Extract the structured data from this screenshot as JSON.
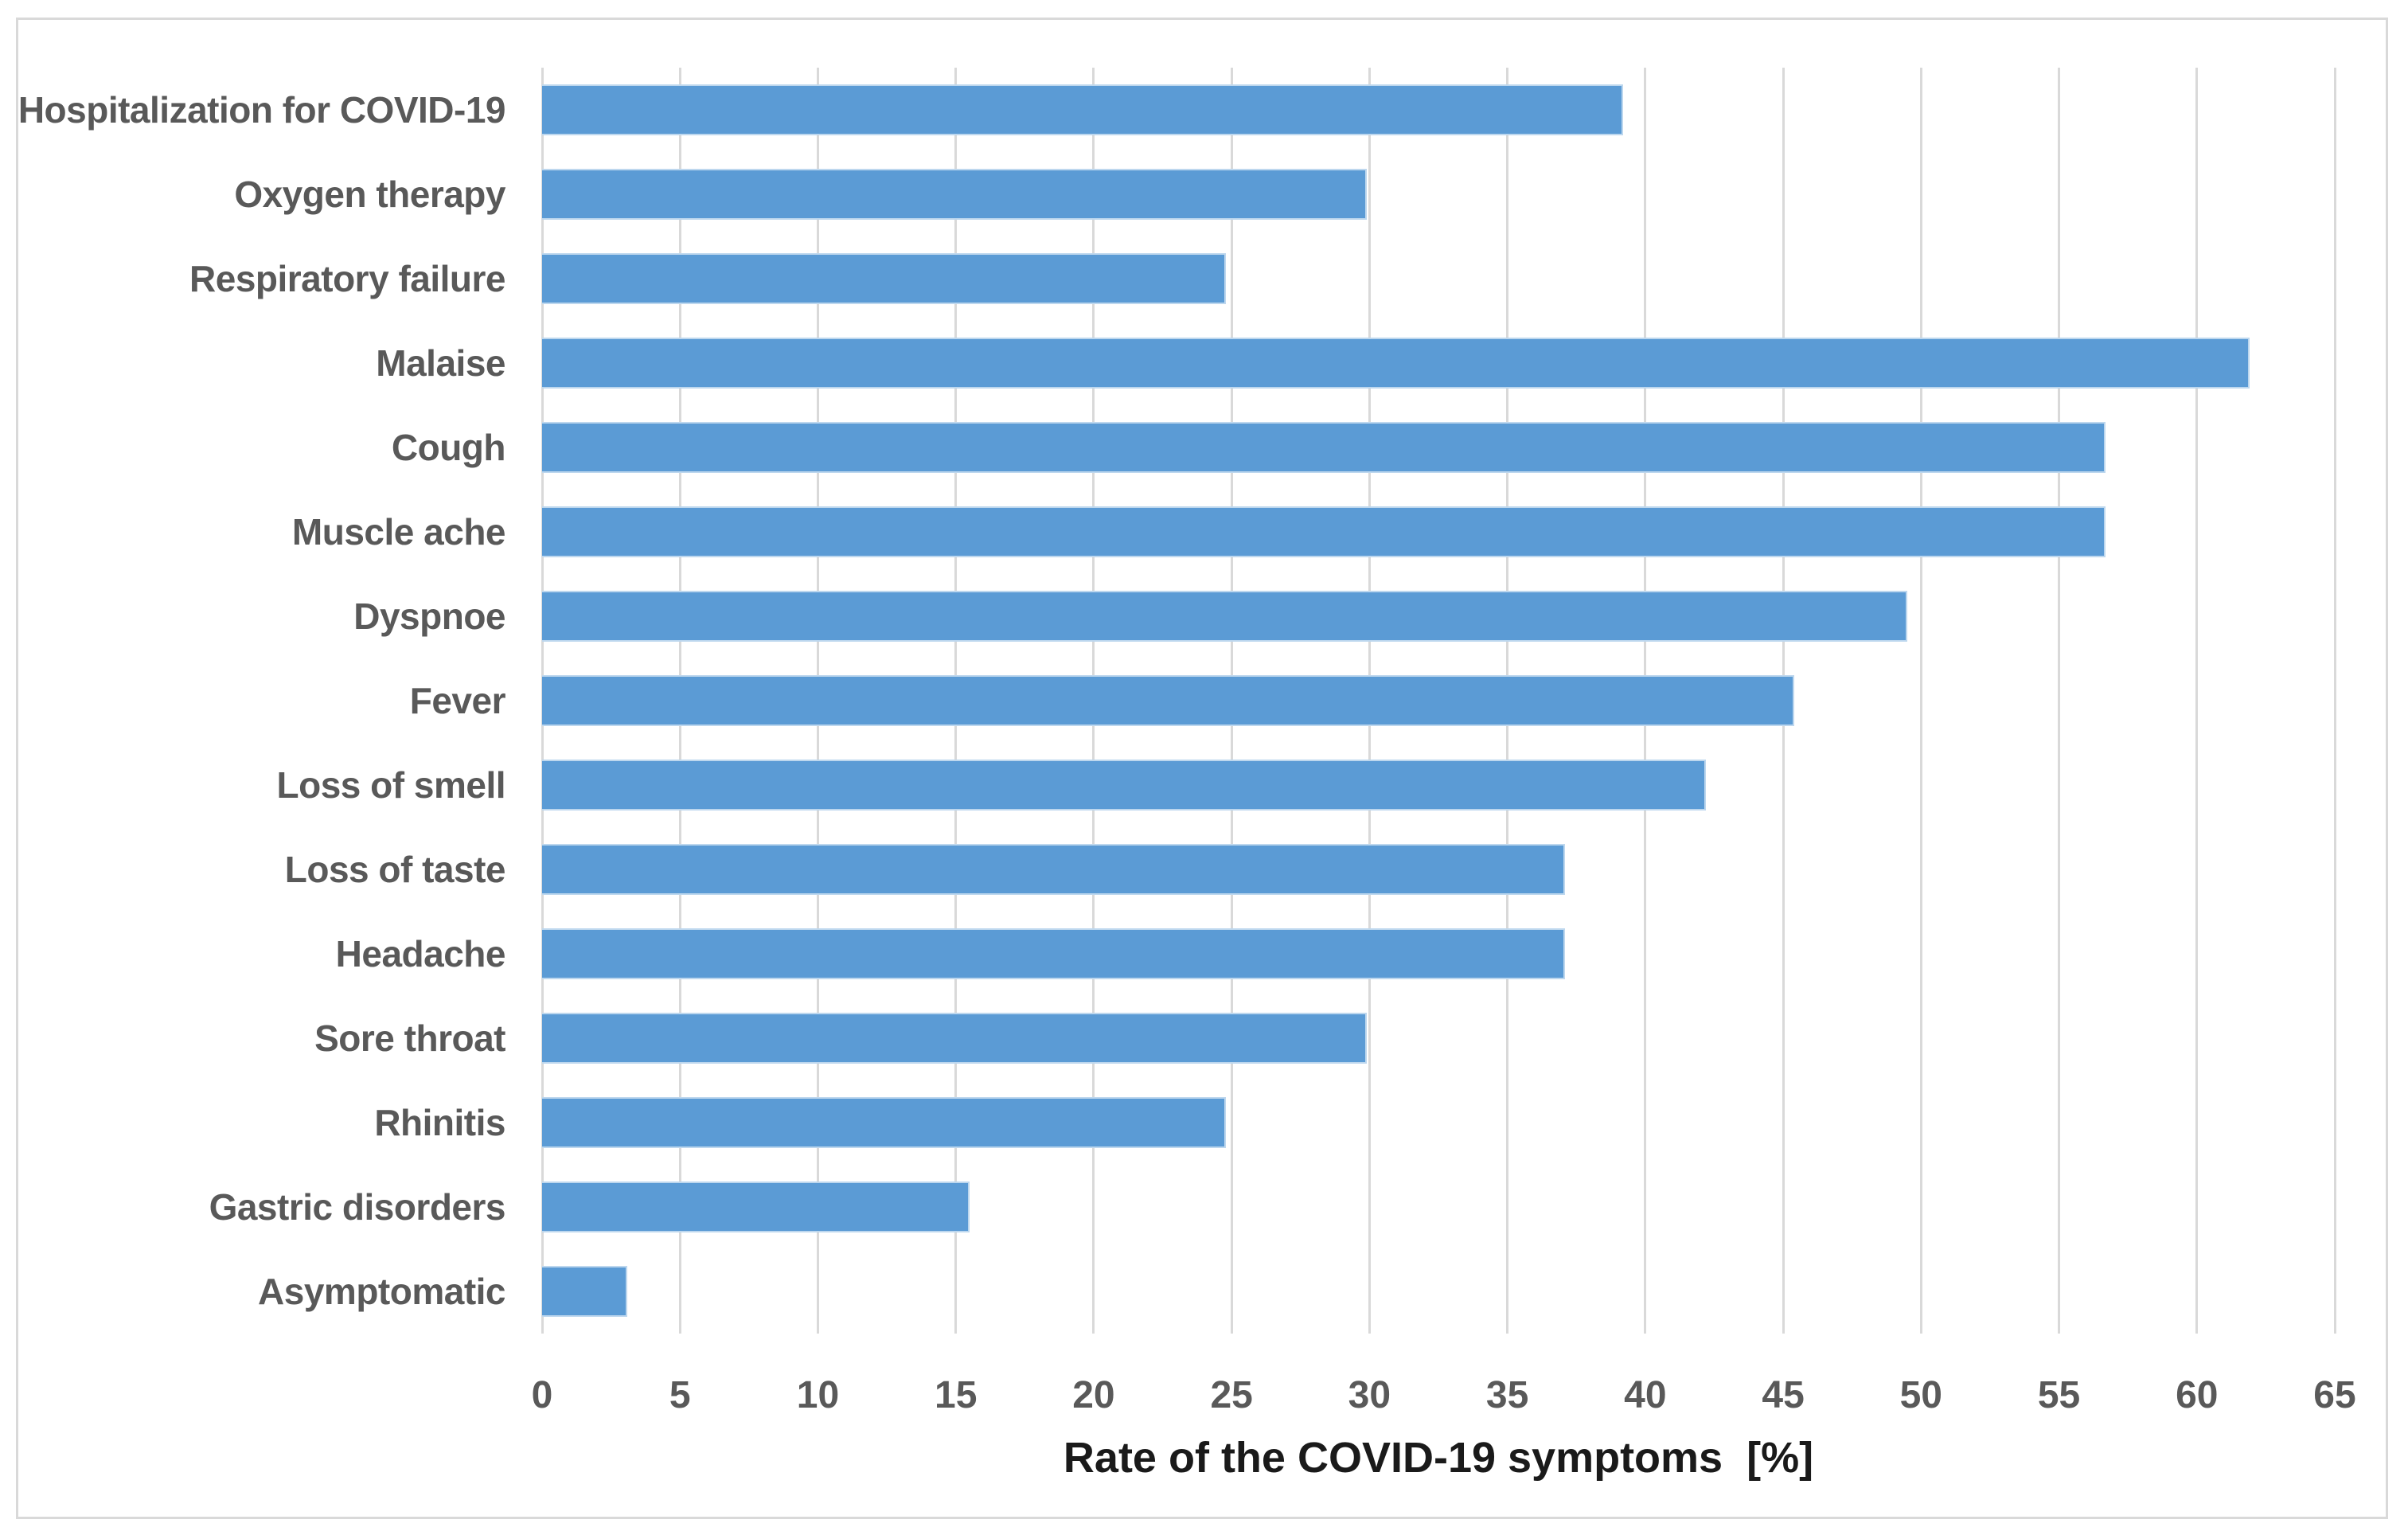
{
  "chart_data": {
    "type": "bar",
    "orientation": "horizontal",
    "title": "",
    "xlabel": "Rate of the COVID-19 symptoms  [%]",
    "ylabel": "",
    "unit": "%",
    "xlim": [
      0,
      65
    ],
    "x_ticks": [
      0,
      5,
      10,
      15,
      20,
      25,
      30,
      35,
      40,
      45,
      50,
      55,
      60,
      65
    ],
    "grid": "vertical-major-every-5",
    "legend": "none",
    "categories": [
      "Hospitalization for COVID-19",
      "Oxygen therapy",
      "Respiratory failure",
      "Malaise",
      "Cough",
      "Muscle ache",
      "Dyspnoe",
      "Fever",
      "Loss of smell",
      "Loss of taste",
      "Headache",
      "Sore throat",
      "Rhinitis",
      "Gastric disorders",
      "Asymptomatic"
    ],
    "values": [
      39.2,
      29.9,
      24.8,
      61.9,
      56.7,
      56.7,
      49.5,
      45.4,
      42.2,
      37.1,
      37.1,
      29.9,
      24.8,
      15.5,
      3.1
    ]
  },
  "colors": {
    "bar-fill": "#5B9BD5",
    "bar-edge": "#BDD7EE",
    "gridline": "#D9D9D9",
    "axis-text": "#595959",
    "title-text": "#1A1A1A",
    "frame-border": "#D9D9D9",
    "background": "#FFFFFF"
  }
}
